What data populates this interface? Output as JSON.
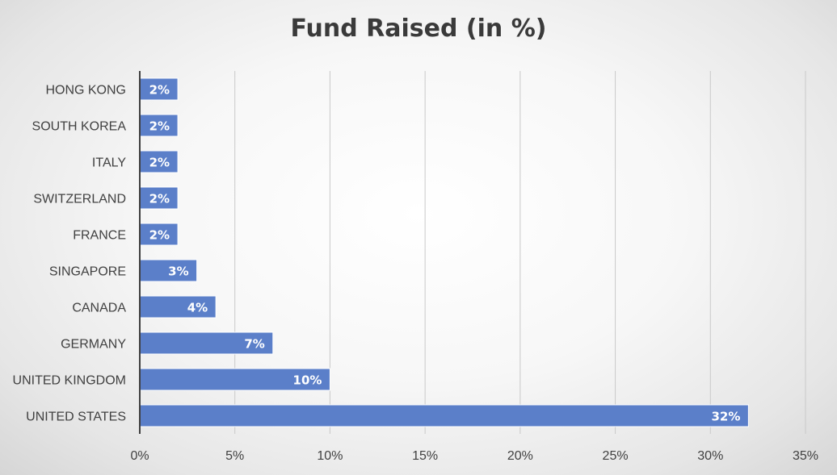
{
  "chart_data": {
    "type": "bar",
    "orientation": "horizontal",
    "title": "Fund Raised (in %)",
    "xlabel": "",
    "ylabel": "",
    "categories": [
      "UNITED STATES",
      "UNITED KINGDOM",
      "GERMANY",
      "CANADA",
      "SINGAPORE",
      "FRANCE",
      "SWITZERLAND",
      "ITALY",
      "SOUTH KOREA",
      "HONG KONG"
    ],
    "values": [
      32,
      10,
      7,
      4,
      3,
      2,
      2,
      2,
      2,
      2
    ],
    "data_labels": [
      "32%",
      "10%",
      "7%",
      "4%",
      "3%",
      "2%",
      "2%",
      "2%",
      "2%",
      "2%"
    ],
    "xlim": [
      0,
      35
    ],
    "x_ticks": [
      0,
      5,
      10,
      15,
      20,
      25,
      30,
      35
    ],
    "x_tick_labels": [
      "0%",
      "5%",
      "10%",
      "15%",
      "20%",
      "25%",
      "30%",
      "35%"
    ],
    "grid": "vertical",
    "legend": "none",
    "bar_color": "#5b7fc9",
    "title_color": "#3a3a3a"
  }
}
